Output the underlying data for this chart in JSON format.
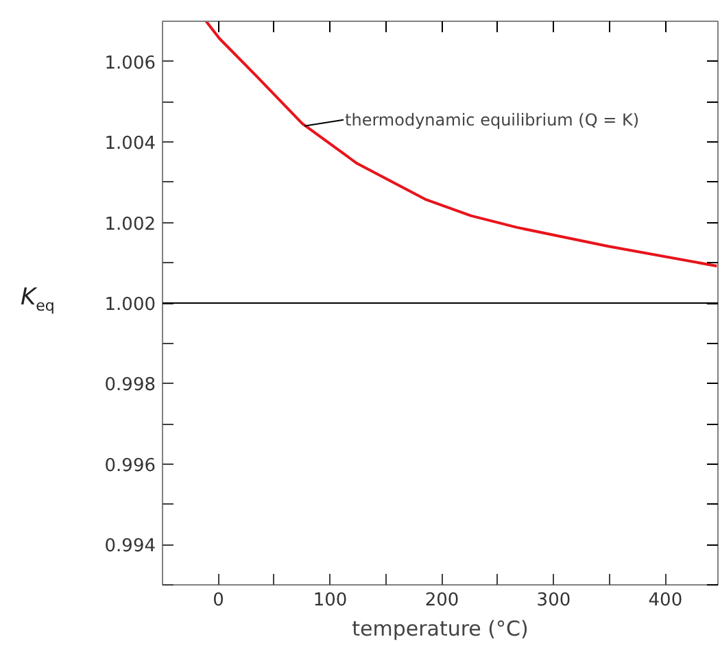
{
  "chart_data": {
    "type": "line",
    "xlabel": "temperature (°C)",
    "ylabel": "K$_{eq}$",
    "x": [
      -11,
      1,
      34,
      75,
      124,
      185,
      226,
      267,
      349,
      446
    ],
    "series": [
      {
        "color": "#e8141c",
        "values": [
          1.007,
          1.00657,
          1.00564,
          1.00446,
          1.00347,
          1.00258,
          1.00217,
          1.00188,
          1.00141,
          1.00092
        ]
      }
    ],
    "xlim": [
      -50,
      447
    ],
    "ylim": [
      0.993,
      1.007
    ],
    "xticks": [
      {
        "value": -50,
        "label": null
      },
      0,
      {
        "value": 50,
        "label": null
      },
      100,
      {
        "value": 150,
        "label": null
      },
      200,
      {
        "value": 250,
        "label": null
      },
      300,
      {
        "value": 350,
        "label": null
      },
      400
    ],
    "yticks": [
      {
        "value": 0.993,
        "label": null
      },
      {
        "value": 0.994,
        "label": "0.994"
      },
      {
        "value": 0.995,
        "label": null
      },
      {
        "value": 0.996,
        "label": "0.996"
      },
      {
        "value": 0.997,
        "label": null
      },
      {
        "value": 0.998,
        "label": "0.998"
      },
      {
        "value": 0.999,
        "label": null
      },
      {
        "value": 1.0,
        "label": "1.000"
      },
      {
        "value": 1.001,
        "label": null
      },
      {
        "value": 1.002,
        "label": "1.002"
      },
      {
        "value": 1.003,
        "label": null
      },
      {
        "value": 1.004,
        "label": "1.004"
      },
      {
        "value": 1.005,
        "label": null
      },
      {
        "value": 1.006,
        "label": "1.006"
      }
    ],
    "ref_lines": [
      {
        "axis": "y",
        "value": 1.0,
        "label": null,
        "color": "#000000"
      }
    ],
    "annotations": [
      {
        "text": "thermodynamic equilibrium (Q = K)",
        "x": 77,
        "y": 1.0044
      }
    ],
    "grid": false
  }
}
